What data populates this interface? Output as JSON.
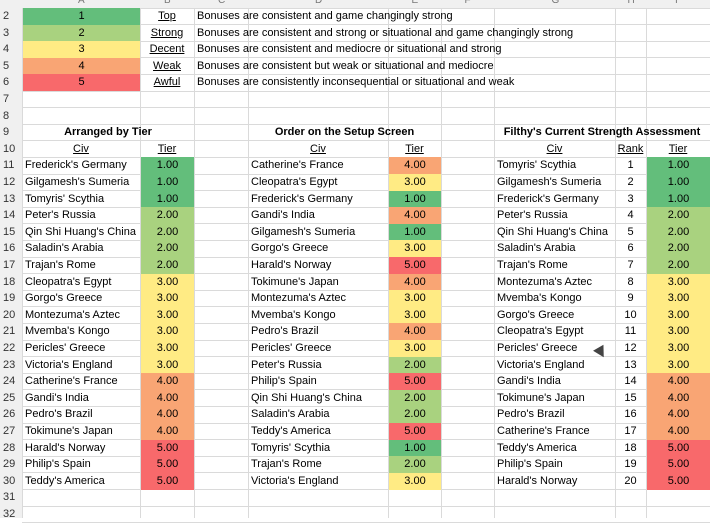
{
  "column_headers": [
    "A",
    "B",
    "C",
    "D",
    "E",
    "F",
    "G",
    "H",
    "I"
  ],
  "row_numbers": [
    "2",
    "3",
    "4",
    "5",
    "6",
    "7",
    "8",
    "9",
    "10",
    "11",
    "12",
    "13",
    "14",
    "15",
    "16",
    "17",
    "18",
    "19",
    "20",
    "21",
    "22",
    "23",
    "24",
    "25",
    "26",
    "27",
    "28",
    "29",
    "30",
    "31",
    "32"
  ],
  "colors": {
    "tier1": "#63be7b",
    "tier2": "#a9d27f",
    "tier3": "#ffeb84",
    "tier4": "#f9a574",
    "tier5": "#f8696b"
  },
  "legend": [
    {
      "num": "1",
      "name": "Top",
      "desc": "Bonuses are consistent and game changingly strong"
    },
    {
      "num": "2",
      "name": "Strong",
      "desc": "Bonuses are consistent and strong or situational and game changingly strong"
    },
    {
      "num": "3",
      "name": "Decent",
      "desc": "Bonuses are consistent and mediocre or situational and strong"
    },
    {
      "num": "4",
      "name": "Weak",
      "desc": "Bonuses are consistent but weak or situational and mediocre"
    },
    {
      "num": "5",
      "name": "Awful",
      "desc": "Bonuses are consistently inconsequential or situational and weak"
    }
  ],
  "section_titles": {
    "tier": "Arranged by Tier",
    "setup": "Order on the Setup Screen",
    "filthy": "Filthy's Current Strength Assessment"
  },
  "headers": {
    "civ": "Civ",
    "tier": "Tier",
    "rank": "Rank"
  },
  "by_tier": [
    {
      "civ": "Frederick's Germany",
      "tier": "1.00"
    },
    {
      "civ": "Gilgamesh's Sumeria",
      "tier": "1.00"
    },
    {
      "civ": "Tomyris' Scythia",
      "tier": "1.00"
    },
    {
      "civ": "Peter's Russia",
      "tier": "2.00"
    },
    {
      "civ": "Qin Shi Huang's China",
      "tier": "2.00"
    },
    {
      "civ": "Saladin's Arabia",
      "tier": "2.00"
    },
    {
      "civ": "Trajan's Rome",
      "tier": "2.00"
    },
    {
      "civ": "Cleopatra's Egypt",
      "tier": "3.00"
    },
    {
      "civ": "Gorgo's Greece",
      "tier": "3.00"
    },
    {
      "civ": "Montezuma's Aztec",
      "tier": "3.00"
    },
    {
      "civ": "Mvemba's Kongo",
      "tier": "3.00"
    },
    {
      "civ": "Pericles' Greece",
      "tier": "3.00"
    },
    {
      "civ": "Victoria's England",
      "tier": "3.00"
    },
    {
      "civ": "Catherine's France",
      "tier": "4.00"
    },
    {
      "civ": "Gandi's India",
      "tier": "4.00"
    },
    {
      "civ": "Pedro's Brazil",
      "tier": "4.00"
    },
    {
      "civ": "Tokimune's Japan",
      "tier": "4.00"
    },
    {
      "civ": "Harald's Norway",
      "tier": "5.00"
    },
    {
      "civ": "Philip's Spain",
      "tier": "5.00"
    },
    {
      "civ": "Teddy's America",
      "tier": "5.00"
    }
  ],
  "setup_order": [
    {
      "civ": "Catherine's France",
      "tier": "4.00"
    },
    {
      "civ": "Cleopatra's Egypt",
      "tier": "3.00"
    },
    {
      "civ": "Frederick's Germany",
      "tier": "1.00"
    },
    {
      "civ": "Gandi's India",
      "tier": "4.00"
    },
    {
      "civ": "Gilgamesh's Sumeria",
      "tier": "1.00"
    },
    {
      "civ": "Gorgo's Greece",
      "tier": "3.00"
    },
    {
      "civ": "Harald's Norway",
      "tier": "5.00"
    },
    {
      "civ": "Tokimune's Japan",
      "tier": "4.00"
    },
    {
      "civ": "Montezuma's Aztec",
      "tier": "3.00"
    },
    {
      "civ": "Mvemba's Kongo",
      "tier": "3.00"
    },
    {
      "civ": "Pedro's Brazil",
      "tier": "4.00"
    },
    {
      "civ": "Pericles' Greece",
      "tier": "3.00"
    },
    {
      "civ": "Peter's Russia",
      "tier": "2.00"
    },
    {
      "civ": "Philip's Spain",
      "tier": "5.00"
    },
    {
      "civ": "Qin Shi Huang's China",
      "tier": "2.00"
    },
    {
      "civ": "Saladin's Arabia",
      "tier": "2.00"
    },
    {
      "civ": "Teddy's America",
      "tier": "5.00"
    },
    {
      "civ": "Tomyris' Scythia",
      "tier": "1.00"
    },
    {
      "civ": "Trajan's Rome",
      "tier": "2.00"
    },
    {
      "civ": "Victoria's England",
      "tier": "3.00"
    }
  ],
  "filthy": [
    {
      "civ": "Tomyris' Scythia",
      "rank": "1",
      "tier": "1.00"
    },
    {
      "civ": "Gilgamesh's Sumeria",
      "rank": "2",
      "tier": "1.00"
    },
    {
      "civ": "Frederick's Germany",
      "rank": "3",
      "tier": "1.00"
    },
    {
      "civ": "Peter's Russia",
      "rank": "4",
      "tier": "2.00"
    },
    {
      "civ": "Qin Shi Huang's China",
      "rank": "5",
      "tier": "2.00"
    },
    {
      "civ": "Saladin's Arabia",
      "rank": "6",
      "tier": "2.00"
    },
    {
      "civ": "Trajan's Rome",
      "rank": "7",
      "tier": "2.00"
    },
    {
      "civ": "Montezuma's Aztec",
      "rank": "8",
      "tier": "3.00"
    },
    {
      "civ": "Mvemba's Kongo",
      "rank": "9",
      "tier": "3.00"
    },
    {
      "civ": "Gorgo's Greece",
      "rank": "10",
      "tier": "3.00"
    },
    {
      "civ": "Cleopatra's Egypt",
      "rank": "11",
      "tier": "3.00"
    },
    {
      "civ": "Pericles' Greece",
      "rank": "12",
      "tier": "3.00"
    },
    {
      "civ": "Victoria's England",
      "rank": "13",
      "tier": "3.00"
    },
    {
      "civ": "Gandi's India",
      "rank": "14",
      "tier": "4.00"
    },
    {
      "civ": "Tokimune's Japan",
      "rank": "15",
      "tier": "4.00"
    },
    {
      "civ": "Pedro's Brazil",
      "rank": "16",
      "tier": "4.00"
    },
    {
      "civ": "Catherine's France",
      "rank": "17",
      "tier": "4.00"
    },
    {
      "civ": "Teddy's America",
      "rank": "18",
      "tier": "5.00"
    },
    {
      "civ": "Philip's Spain",
      "rank": "19",
      "tier": "5.00"
    },
    {
      "civ": "Harald's Norway",
      "rank": "20",
      "tier": "5.00"
    }
  ]
}
